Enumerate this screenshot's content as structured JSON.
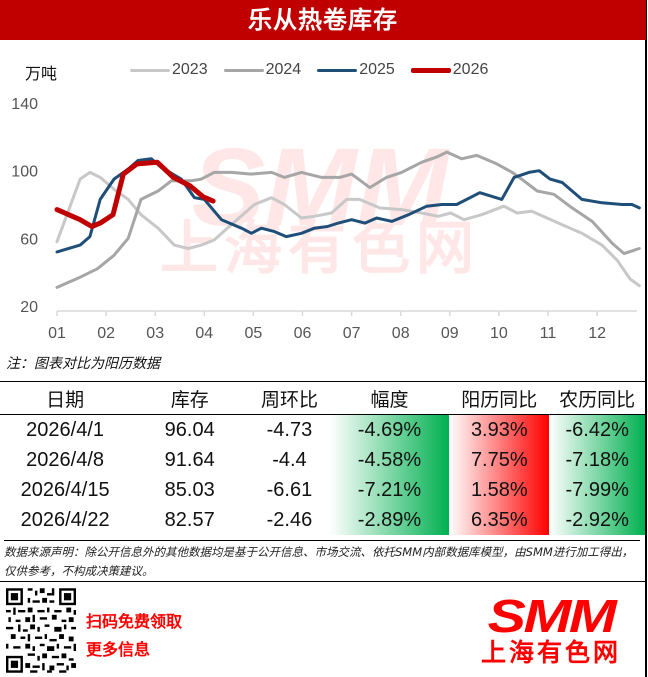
{
  "title": "乐从热卷库存",
  "unit_label": "万吨",
  "legend": [
    {
      "label": "2023",
      "color": "#c8c8c8",
      "width": 3
    },
    {
      "label": "2024",
      "color": "#a6a6a6",
      "width": 3
    },
    {
      "label": "2025",
      "color": "#1f4e79",
      "width": 3
    },
    {
      "label": "2026",
      "color": "#c00000",
      "width": 5
    }
  ],
  "note": "注：图表对比为阳历数据",
  "table": {
    "headers": [
      "日期",
      "库存",
      "周环比",
      "幅度",
      "阳历同比",
      "农历同比"
    ],
    "rows": [
      {
        "date": "2026/4/1",
        "stock": "96.04",
        "wow": "-4.73",
        "pct": "-4.69%",
        "yoy_solar": "3.93%",
        "yoy_lunar": "-6.42%"
      },
      {
        "date": "2026/4/8",
        "stock": "91.64",
        "wow": "-4.4",
        "pct": "-4.58%",
        "yoy_solar": "7.75%",
        "yoy_lunar": "-7.18%"
      },
      {
        "date": "2026/4/15",
        "stock": "85.03",
        "wow": "-6.61",
        "pct": "-7.21%",
        "yoy_solar": "1.58%",
        "yoy_lunar": "-7.99%"
      },
      {
        "date": "2026/4/22",
        "stock": "82.57",
        "wow": "-2.46",
        "pct": "-2.89%",
        "yoy_solar": "6.35%",
        "yoy_lunar": "-2.92%"
      }
    ]
  },
  "disclaimer": "数据来源声明：除公开信息外的其他数据均是基于公开信息、市场交流、依托SMM内部数据库模型，由SMM进行加工得出，仅供参考，不构成决策建议。",
  "promo": {
    "line1": "扫码免费领取",
    "line2": "更多信息"
  },
  "logo": {
    "brand": "SMM",
    "name": "上海有色网"
  },
  "watermark": {
    "brand": "SMM",
    "name": "上海有色网"
  },
  "chart_data": {
    "type": "line",
    "title": "乐从热卷库存",
    "xlabel": "",
    "ylabel": "万吨",
    "ylim": [
      20,
      140
    ],
    "yticks": [
      20,
      60,
      100,
      140
    ],
    "xticks": [
      "01",
      "02",
      "03",
      "04",
      "05",
      "06",
      "07",
      "08",
      "09",
      "10",
      "11",
      "12"
    ],
    "grid": false,
    "legend_position": "top",
    "x_unit": "month (fractional, 1.0 = start of Jan, 13.0 = end of Dec)",
    "series": [
      {
        "name": "2023",
        "color": "#c8c8c8",
        "x": [
          1.0,
          1.47,
          1.67,
          1.88,
          2.16,
          2.45,
          2.71,
          3.06,
          3.39,
          3.67,
          3.94,
          4.2,
          4.55,
          5.02,
          5.37,
          5.63,
          5.98,
          6.24,
          6.59,
          6.9,
          7.16,
          7.57,
          8.02,
          8.43,
          8.76,
          9.02,
          9.29,
          9.65,
          10.1,
          10.37,
          10.67,
          10.98,
          11.29,
          11.69,
          12.1,
          12.41,
          12.67,
          12.86
        ],
        "values": [
          58,
          95,
          99,
          96,
          89,
          83,
          74,
          66,
          56,
          54,
          56,
          59,
          68,
          80,
          84,
          80,
          72,
          73,
          75,
          83,
          83,
          78,
          77,
          75,
          73,
          75,
          71,
          74,
          79,
          75,
          76,
          72,
          68,
          63,
          56,
          47,
          36,
          32
        ]
      },
      {
        "name": "2024",
        "color": "#a6a6a6",
        "x": [
          1.0,
          1.47,
          1.82,
          2.16,
          2.45,
          2.71,
          3.06,
          3.33,
          3.73,
          3.94,
          4.2,
          4.55,
          4.96,
          5.37,
          5.63,
          5.98,
          6.39,
          6.76,
          7.0,
          7.37,
          7.71,
          8.02,
          8.43,
          8.73,
          8.94,
          9.24,
          9.55,
          9.96,
          10.27,
          10.51,
          10.78,
          11.12,
          11.49,
          11.9,
          12.31,
          12.55,
          12.86
        ],
        "values": [
          31,
          37,
          42,
          50,
          60,
          83,
          88,
          94,
          94,
          95,
          99,
          99,
          98,
          99,
          96,
          99,
          96,
          96,
          98,
          90,
          96,
          99,
          105,
          108,
          111,
          107,
          109,
          104,
          99,
          94,
          88,
          86,
          78,
          70,
          57,
          51,
          54
        ]
      },
      {
        "name": "2025",
        "color": "#1f4e79",
        "x": [
          1.0,
          1.47,
          1.67,
          1.88,
          2.16,
          2.45,
          2.65,
          2.92,
          3.12,
          3.53,
          3.8,
          4.0,
          4.35,
          4.76,
          4.96,
          5.16,
          5.43,
          5.67,
          5.98,
          6.24,
          6.51,
          6.73,
          7.0,
          7.27,
          7.51,
          7.82,
          8.16,
          8.53,
          8.84,
          9.14,
          9.61,
          10.06,
          10.31,
          10.61,
          10.82,
          11.04,
          11.29,
          11.69,
          12.1,
          12.51,
          12.71,
          12.86
        ],
        "values": [
          52,
          56,
          61,
          83,
          95,
          101,
          106,
          107,
          102,
          95,
          84,
          83,
          71,
          66,
          63,
          66,
          64,
          61,
          63,
          66,
          67,
          69,
          71,
          69,
          72,
          70,
          74,
          79,
          80,
          80,
          87,
          83,
          96,
          99,
          100,
          95,
          93,
          83,
          81,
          80,
          80,
          78
        ]
      },
      {
        "name": "2026",
        "color": "#c00000",
        "x": [
          1.0,
          1.47,
          1.71,
          1.88,
          2.14,
          2.35,
          2.63,
          3.04,
          3.37,
          3.71,
          3.98,
          4.18
        ],
        "values": [
          77,
          71,
          67,
          69,
          74,
          98,
          104,
          105,
          96,
          91,
          84.5,
          82
        ]
      }
    ]
  }
}
